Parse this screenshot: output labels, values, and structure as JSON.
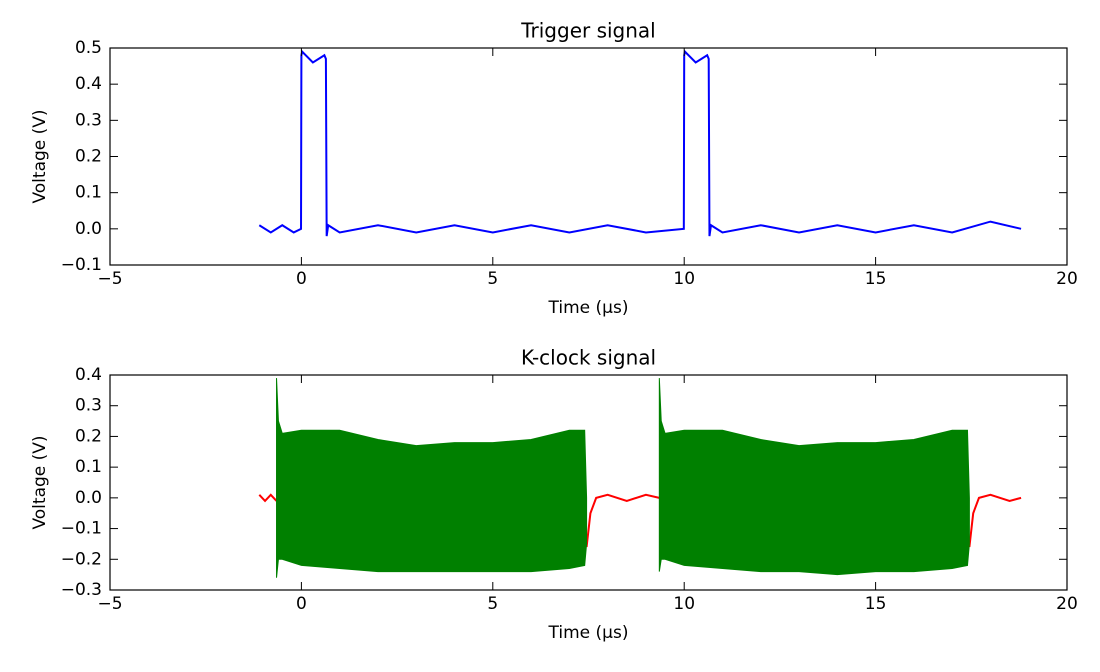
{
  "chart_data": [
    {
      "type": "line",
      "title": "Trigger signal",
      "xlabel": "Time (μs)",
      "ylabel": "Voltage (V)",
      "xlim": [
        -5,
        20
      ],
      "xticks": [
        {
          "value": -5,
          "label": "−5"
        },
        0,
        5,
        10,
        15,
        20
      ],
      "ylim": [
        -0.1,
        0.5
      ],
      "yticks": [
        {
          "value": -0.1,
          "label": "−0.1"
        },
        {
          "value": 0,
          "label": "0.0"
        },
        0.1,
        0.2,
        0.3,
        0.4,
        0.5
      ],
      "series": [
        {
          "color": "#0000ff",
          "x": [
            -1.1,
            -0.8,
            -0.5,
            -0.2,
            -0.01,
            0.0,
            0.02,
            0.3,
            0.6,
            0.64,
            0.66,
            0.7,
            1,
            2,
            3,
            4,
            5,
            6,
            7,
            8,
            9,
            9.99,
            10.0,
            10.02,
            10.3,
            10.6,
            10.64,
            10.66,
            10.7,
            11,
            12,
            13,
            14,
            15,
            16,
            17,
            18,
            18.8
          ],
          "values": [
            0.01,
            -0.01,
            0.01,
            -0.01,
            0.0,
            0.48,
            0.49,
            0.46,
            0.48,
            0.47,
            -0.02,
            0.01,
            -0.01,
            0.01,
            -0.01,
            0.01,
            -0.01,
            0.01,
            -0.01,
            0.01,
            -0.01,
            0.0,
            0.48,
            0.49,
            0.46,
            0.48,
            0.47,
            -0.02,
            0.01,
            -0.01,
            0.01,
            -0.01,
            0.01,
            -0.01,
            0.01,
            -0.01,
            0.02,
            0.0
          ]
        }
      ]
    },
    {
      "type": "line",
      "title": "K-clock signal",
      "xlabel": "Time (μs)",
      "ylabel": "Voltage (V)",
      "xlim": [
        -5,
        20
      ],
      "xticks": [
        {
          "value": -5,
          "label": "−5"
        },
        0,
        5,
        10,
        15,
        20
      ],
      "ylim": [
        -0.3,
        0.4
      ],
      "yticks": [
        {
          "value": -0.3,
          "label": "−0.3"
        },
        {
          "value": -0.2,
          "label": "−0.2"
        },
        {
          "value": -0.1,
          "label": "−0.1"
        },
        {
          "value": 0,
          "label": "0.0"
        },
        0.1,
        0.2,
        0.3,
        0.4
      ],
      "series": [
        {
          "color": "#ff0000",
          "x": [
            -1.1,
            -0.95,
            -0.8,
            -0.65,
            null,
            7.45,
            7.55,
            7.7,
            8,
            8.5,
            9,
            9.35,
            null,
            17.45,
            17.55,
            17.7,
            18,
            18.5,
            18.8
          ],
          "values": [
            0.01,
            -0.01,
            0.01,
            -0.01,
            null,
            -0.16,
            -0.05,
            0.0,
            0.01,
            -0.01,
            0.01,
            0.0,
            null,
            -0.16,
            -0.05,
            0.0,
            0.01,
            -0.01,
            0.0
          ]
        },
        {
          "color": "#008000",
          "fill": true,
          "x": [
            -0.65,
            -0.6,
            -0.5,
            0,
            1,
            2,
            3,
            4,
            5,
            6,
            7,
            7.4,
            7.45
          ],
          "values": [
            0.39,
            0.25,
            0.21,
            0.22,
            0.22,
            0.19,
            0.17,
            0.18,
            0.18,
            0.19,
            0.22,
            0.22,
            0.0
          ],
          "lower": [
            -0.26,
            -0.2,
            -0.2,
            -0.22,
            -0.23,
            -0.24,
            -0.24,
            -0.24,
            -0.24,
            -0.24,
            -0.23,
            -0.22,
            -0.15
          ]
        },
        {
          "color": "#008000",
          "fill": true,
          "x": [
            9.35,
            9.4,
            9.5,
            10,
            11,
            12,
            13,
            14,
            15,
            16,
            17,
            17.4,
            17.45
          ],
          "values": [
            0.39,
            0.25,
            0.21,
            0.22,
            0.22,
            0.19,
            0.17,
            0.18,
            0.18,
            0.19,
            0.22,
            0.22,
            0.0
          ],
          "lower": [
            -0.24,
            -0.2,
            -0.2,
            -0.22,
            -0.23,
            -0.24,
            -0.24,
            -0.25,
            -0.24,
            -0.24,
            -0.23,
            -0.22,
            -0.15
          ]
        }
      ]
    }
  ]
}
